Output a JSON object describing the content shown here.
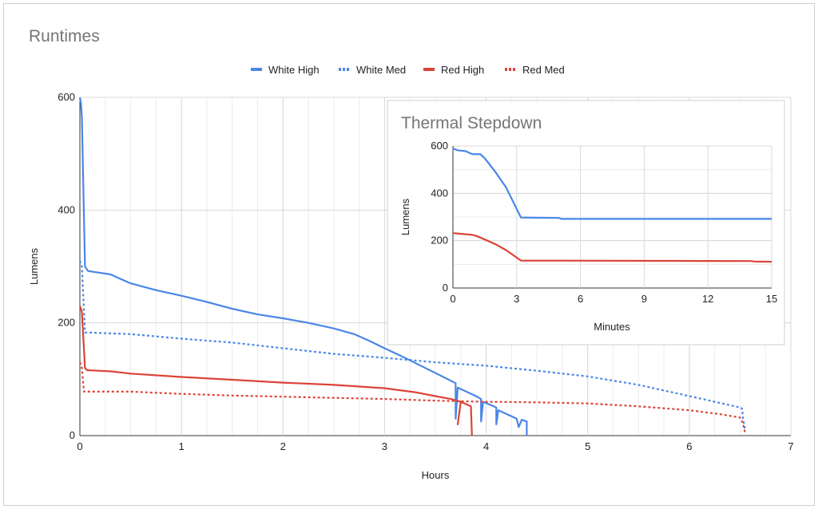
{
  "chart_data": [
    {
      "type": "line",
      "title": "Runtimes",
      "xlabel": "Hours",
      "ylabel": "Lumens",
      "xlim": [
        0,
        7
      ],
      "ylim": [
        0,
        600
      ],
      "xticks": [
        "0",
        "1",
        "2",
        "3",
        "4",
        "5",
        "6",
        "7"
      ],
      "yticks": [
        "0",
        "200",
        "400",
        "600"
      ],
      "legend_position": "top",
      "series": [
        {
          "name": "White High",
          "color": "#4a86e8",
          "dash": "solid",
          "points": [
            [
              0,
              600
            ],
            [
              0.01,
              590
            ],
            [
              0.02,
              565
            ],
            [
              0.05,
              300
            ],
            [
              0.08,
              292
            ],
            [
              0.3,
              286
            ],
            [
              0.5,
              270
            ],
            [
              0.75,
              258
            ],
            [
              1.0,
              248
            ],
            [
              1.25,
              237
            ],
            [
              1.5,
              225
            ],
            [
              1.75,
              215
            ],
            [
              2.0,
              208
            ],
            [
              2.25,
              200
            ],
            [
              2.5,
              190
            ],
            [
              2.7,
              180
            ],
            [
              2.85,
              168
            ],
            [
              3.0,
              155
            ],
            [
              3.2,
              138
            ],
            [
              3.4,
              120
            ],
            [
              3.6,
              102
            ],
            [
              3.7,
              93
            ],
            [
              3.7,
              30
            ],
            [
              3.72,
              85
            ],
            [
              3.9,
              70
            ],
            [
              3.95,
              65
            ],
            [
              3.95,
              25
            ],
            [
              3.97,
              60
            ],
            [
              4.1,
              50
            ],
            [
              4.1,
              20
            ],
            [
              4.12,
              45
            ],
            [
              4.3,
              30
            ],
            [
              4.32,
              15
            ],
            [
              4.35,
              28
            ],
            [
              4.4,
              25
            ],
            [
              4.4,
              0
            ]
          ]
        },
        {
          "name": "White Med",
          "color": "#4a86e8",
          "dash": "dotted",
          "points": [
            [
              0,
              310
            ],
            [
              0.02,
              300
            ],
            [
              0.05,
              183
            ],
            [
              0.5,
              180
            ],
            [
              1.0,
              172
            ],
            [
              1.5,
              165
            ],
            [
              2.0,
              155
            ],
            [
              2.5,
              145
            ],
            [
              3.0,
              138
            ],
            [
              3.5,
              130
            ],
            [
              4.0,
              124
            ],
            [
              4.5,
              115
            ],
            [
              5.0,
              105
            ],
            [
              5.5,
              90
            ],
            [
              6.0,
              70
            ],
            [
              6.5,
              50
            ],
            [
              6.52,
              48
            ],
            [
              6.53,
              30
            ],
            [
              6.55,
              10
            ]
          ]
        },
        {
          "name": "Red High",
          "color": "#db4437",
          "dash": "solid",
          "points": [
            [
              0,
              230
            ],
            [
              0.02,
              220
            ],
            [
              0.05,
              120
            ],
            [
              0.07,
              116
            ],
            [
              0.3,
              114
            ],
            [
              0.5,
              110
            ],
            [
              1.0,
              104
            ],
            [
              1.5,
              99
            ],
            [
              2.0,
              94
            ],
            [
              2.5,
              90
            ],
            [
              3.0,
              84
            ],
            [
              3.3,
              77
            ],
            [
              3.5,
              70
            ],
            [
              3.65,
              65
            ],
            [
              3.75,
              60
            ],
            [
              3.72,
              20
            ],
            [
              3.75,
              60
            ],
            [
              3.85,
              52
            ],
            [
              3.86,
              0
            ]
          ]
        },
        {
          "name": "Red Med",
          "color": "#db4437",
          "dash": "dotted",
          "points": [
            [
              0,
              130
            ],
            [
              0.02,
              120
            ],
            [
              0.04,
              78
            ],
            [
              0.5,
              78
            ],
            [
              1.0,
              74
            ],
            [
              1.5,
              71
            ],
            [
              2.0,
              69
            ],
            [
              2.5,
              67
            ],
            [
              3.0,
              65
            ],
            [
              3.5,
              62
            ],
            [
              4.0,
              60
            ],
            [
              4.5,
              59
            ],
            [
              5.0,
              57
            ],
            [
              5.5,
              52
            ],
            [
              6.0,
              45
            ],
            [
              6.3,
              38
            ],
            [
              6.5,
              32
            ],
            [
              6.52,
              25
            ],
            [
              6.53,
              20
            ],
            [
              6.55,
              5
            ]
          ]
        }
      ]
    },
    {
      "type": "line",
      "title": "Thermal Stepdown",
      "xlabel": "Minutes",
      "ylabel": "Lumens",
      "xlim": [
        0,
        15
      ],
      "ylim": [
        0,
        600
      ],
      "xticks": [
        "0",
        "3",
        "6",
        "9",
        "12",
        "15"
      ],
      "yticks": [
        "0",
        "200",
        "400",
        "600"
      ],
      "series": [
        {
          "name": "White High",
          "color": "#4a86e8",
          "points": [
            [
              0,
              590
            ],
            [
              0.2,
              582
            ],
            [
              0.6,
              578
            ],
            [
              0.9,
              566
            ],
            [
              1.3,
              565
            ],
            [
              1.5,
              548
            ],
            [
              2.0,
              490
            ],
            [
              2.5,
              425
            ],
            [
              3.2,
              298
            ],
            [
              5.0,
              296
            ],
            [
              5.1,
              292
            ],
            [
              15,
              292
            ]
          ]
        },
        {
          "name": "Red High",
          "color": "#db4437",
          "points": [
            [
              0,
              232
            ],
            [
              0.5,
              228
            ],
            [
              0.9,
              225
            ],
            [
              1.1,
              220
            ],
            [
              1.5,
              205
            ],
            [
              2.0,
              185
            ],
            [
              2.5,
              160
            ],
            [
              3.2,
              116
            ],
            [
              14,
              114
            ],
            [
              14.2,
              112
            ],
            [
              15,
              111
            ]
          ]
        }
      ]
    }
  ]
}
